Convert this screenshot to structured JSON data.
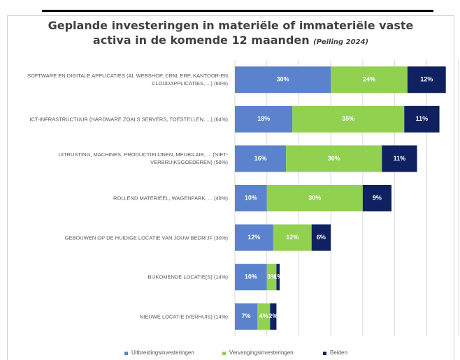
{
  "chart_data": {
    "type": "stacked-bar-horizontal",
    "title": "Geplande investeringen in materiële of immateriële vaste activa in de komende 12 maanden",
    "subtitle": "(Peiling 2024)",
    "categories": [
      "SOFTWARE EN DIGITALE APPLICATIES (AI, WEBSHOP, CRM, ERP, KANTOOR-EN CLOUDAPPLICATIES, ...) (66%)",
      "ICT-INFRASTRUCTUUR (HARDWARE ZOALS SERVERS, TOESTELLEN, ...) (64%)",
      "UITRUSTING, MACHINES, PRODUCTIELIJNEN, MEUBILAIR, ... (NIET-VERBRUIKSGOEDEREN) (58%)",
      "ROLLEND MATERIEEL, WAGENPARK, ... (49%)",
      "GEBOUWEN OP DE HUIDIGE LOCATIE VAN JOUW BEDRIJF (30%)",
      "BIJKOMENDE LOCATIE(S) (14%)",
      "NIEUWE LOCATIE (VERHUIS) (14%)"
    ],
    "series": [
      {
        "name": "Uitbreidingsinvesteringen",
        "color": "#5b82cc",
        "values": [
          30,
          18,
          16,
          10,
          12,
          10,
          7
        ],
        "value_labels": [
          "30%",
          "18%",
          "16%",
          "10%",
          "12%",
          "10%",
          "7%"
        ]
      },
      {
        "name": "Vervangingsinvesteringen",
        "color": "#92d050",
        "values": [
          24,
          35,
          30,
          30,
          12,
          3,
          4
        ],
        "value_labels": [
          "24%",
          "35%",
          "30%",
          "30%",
          "12%",
          "3%",
          "4%"
        ]
      },
      {
        "name": "Beiden",
        "color": "#0f2160",
        "values": [
          12,
          11,
          11,
          9,
          6,
          1,
          2
        ],
        "value_labels": [
          "12%",
          "11%",
          "11%",
          "9%",
          "6%",
          "1%",
          "2%"
        ]
      }
    ],
    "xlim": [
      0,
      70
    ],
    "xticks": [
      0,
      10,
      20,
      30,
      40,
      50,
      60,
      70
    ],
    "grid": true,
    "legend": "bottom"
  }
}
